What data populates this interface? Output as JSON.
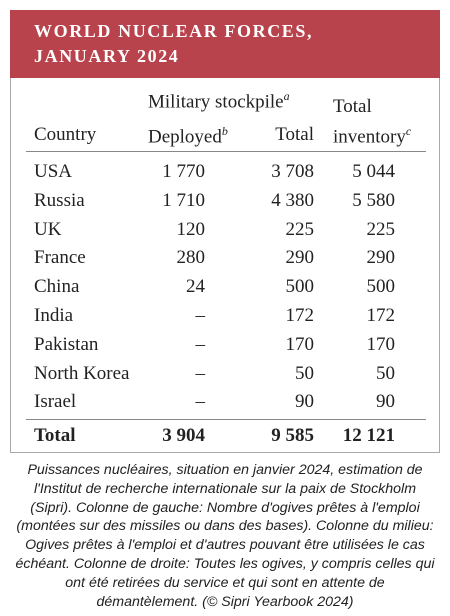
{
  "header": {
    "title": [
      "WORLD NUCLEAR FORCES,",
      "JANUARY 2024"
    ]
  },
  "table": {
    "group_header": {
      "text": "Military stockpile",
      "note": "a"
    },
    "columns": [
      {
        "text": "Country"
      },
      {
        "text": "Deployed",
        "note": "b"
      },
      {
        "text": "Total"
      },
      {
        "text": [
          "Total",
          "inventory"
        ],
        "note": "c"
      }
    ],
    "rows": [
      [
        "USA",
        "1 770",
        "3 708",
        "5 044"
      ],
      [
        "Russia",
        "1 710",
        "4 380",
        "5 580"
      ],
      [
        "UK",
        "120",
        "225",
        "225"
      ],
      [
        "France",
        "280",
        "290",
        "290"
      ],
      [
        "China",
        "24",
        "500",
        "500"
      ],
      [
        "India",
        "–",
        "172",
        "172"
      ],
      [
        "Pakistan",
        "–",
        "170",
        "170"
      ],
      [
        "North Korea",
        "–",
        "50",
        "50"
      ],
      [
        "Israel",
        "–",
        "90",
        "90"
      ]
    ],
    "total": [
      "Total",
      "3 904",
      "9 585",
      "12 121"
    ]
  },
  "caption": {
    "lines": [
      "Puissances nucléaires, situation en janvier 2024, estimation de",
      "l'Institut de recherche internationale sur la paix de Stockholm",
      "(Sipri). Colonne de gauche: Nombre d'ogives prêtes à l'emploi",
      "(montées sur des missiles ou dans des bases). Colonne du milieu:",
      "Ogives prêtes à l'emploi et d'autres pouvant être utilisées le cas",
      "échéant. Colonne de droite: Toutes les ogives, y compris celles qui",
      "ont été retirées du service et qui sont en attente de",
      "démantèlement. (© Sipri Yearbook 2024)"
    ]
  }
}
